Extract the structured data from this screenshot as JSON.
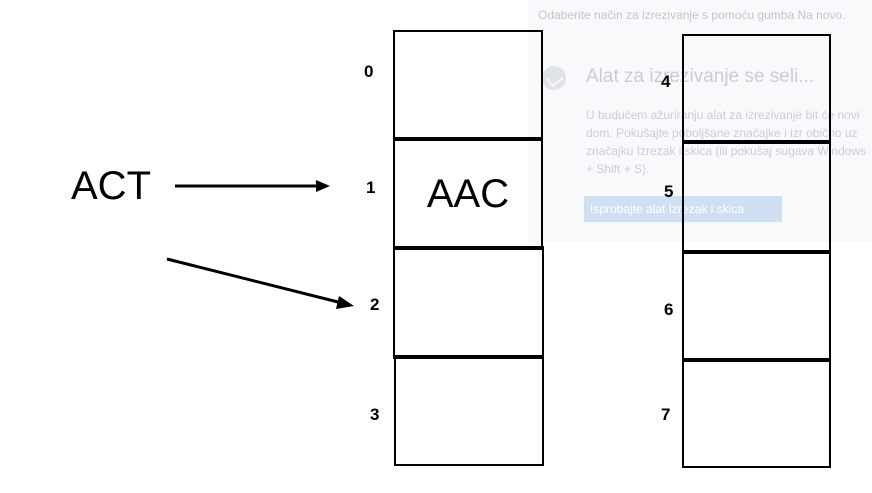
{
  "background_popup": {
    "top_text": "Odaberite način za izrezivanje s pomoću gumba Na novo.",
    "title": "Alat za izrezivanje se seli...",
    "body": "U budućem ažuriranju alat za izrezivanje bit će novi dom. Pokušajte poboljšane značajke i izr obično uz značajku Izrezak i skica (ili pokušaj sugava Windows + Shift + S).",
    "button": "Isprobajte alat Izrezak i skica"
  },
  "diagram": {
    "act_label": "ACT",
    "column_left": [
      {
        "index": "0",
        "content": ""
      },
      {
        "index": "1",
        "content": "AAC"
      },
      {
        "index": "2",
        "content": ""
      },
      {
        "index": "3",
        "content": ""
      }
    ],
    "column_right": [
      {
        "index": "4",
        "content": ""
      },
      {
        "index": "5",
        "content": ""
      },
      {
        "index": "6",
        "content": ""
      },
      {
        "index": "7",
        "content": ""
      }
    ]
  }
}
